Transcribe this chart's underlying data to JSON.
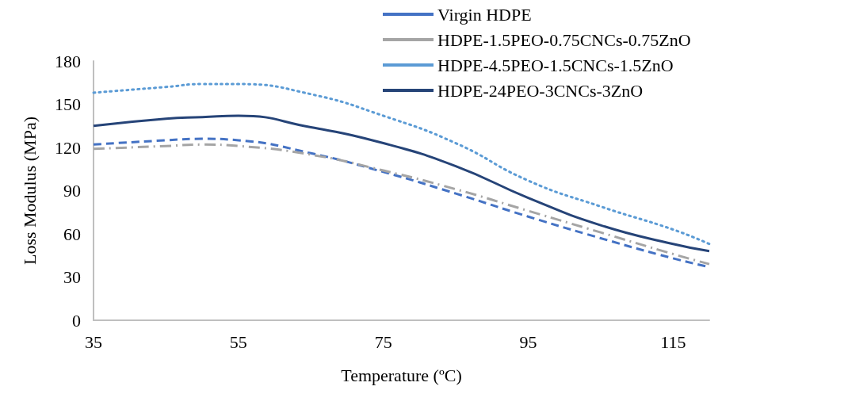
{
  "chart_data": {
    "type": "line",
    "xlabel": "Temperature (ºC)",
    "ylabel": "Loss Modulus (MPa)",
    "x": [
      35,
      45,
      50,
      55,
      65,
      75,
      85,
      95,
      105,
      115,
      120
    ],
    "series": [
      {
        "name": "Virgin HDPE",
        "color": "#4472c4",
        "line_style": "dashed",
        "values": [
          122,
          125,
          126,
          125,
          116,
          103,
          88,
          72,
          57,
          43,
          37
        ]
      },
      {
        "name": "HDPE-1.5PEO-0.75CNCs-0.75ZnO",
        "color": "#a5a5a5",
        "line_style": "dashdot",
        "values": [
          119,
          121,
          122,
          121,
          115,
          104,
          91,
          76,
          61,
          46,
          39
        ]
      },
      {
        "name": "HDPE-4.5PEO-1.5CNCs-1.5ZnO",
        "color": "#5b9bd5",
        "line_style": "dotted",
        "values": [
          158,
          162,
          164,
          164,
          157,
          142,
          123,
          97,
          79,
          63,
          53
        ]
      },
      {
        "name": "HDPE-24PEO-3CNCs-3ZnO",
        "color": "#264478",
        "line_style": "solid",
        "values": [
          135,
          140,
          141,
          142,
          134,
          123,
          107,
          85,
          66,
          53,
          48
        ]
      }
    ],
    "xlim": [
      35,
      120
    ],
    "xticks": [
      35,
      55,
      75,
      95,
      115
    ],
    "ylim": [
      0,
      180
    ],
    "yticks": [
      0,
      30,
      60,
      90,
      120,
      150,
      180
    ],
    "grid": false,
    "legend": "top right",
    "marker": "none"
  }
}
